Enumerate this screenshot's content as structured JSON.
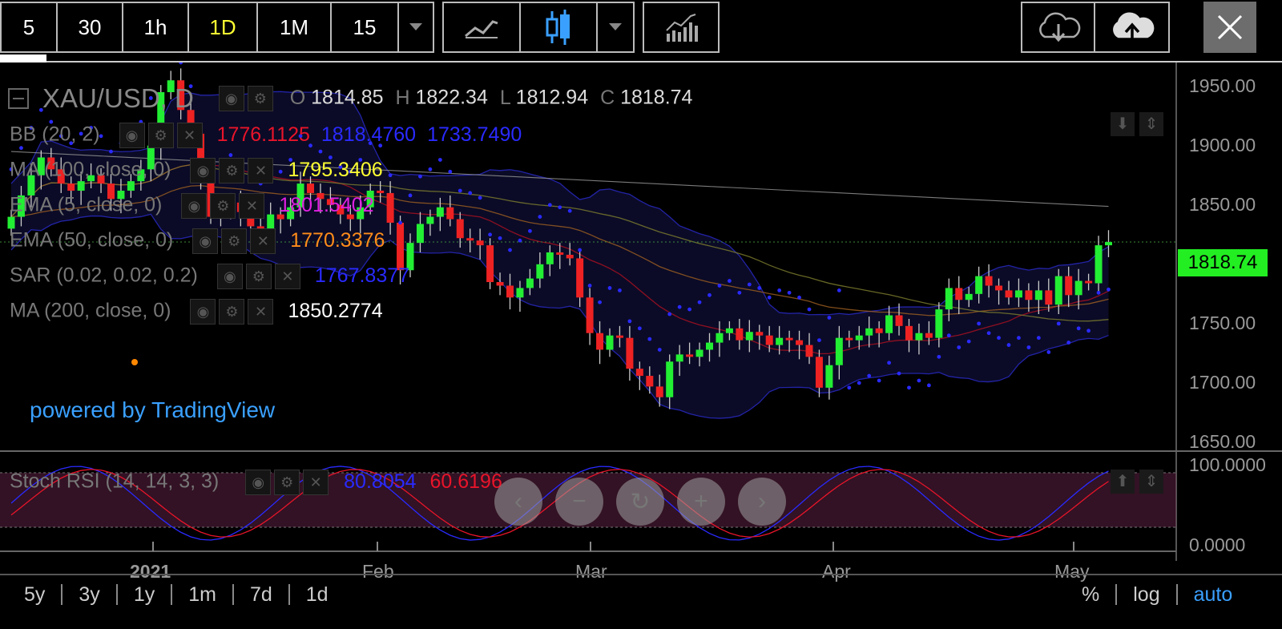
{
  "toolbar": {
    "intervals": [
      "5",
      "30",
      "1h",
      "1D",
      "1M",
      "15"
    ],
    "active_interval": "1D",
    "icons": [
      "line-chart-icon",
      "candlestick-icon",
      "chevron-down-icon",
      "indicators-icon",
      "cloud-download-icon",
      "cloud-upload-icon",
      "close-icon"
    ]
  },
  "legend": {
    "symbol": "XAU/USD, D",
    "ohlc": {
      "o_label": "O",
      "o": "1814.85",
      "h_label": "H",
      "h": "1822.34",
      "l_label": "L",
      "l": "1812.94",
      "c_label": "C",
      "c": "1818.74"
    },
    "indicators": [
      {
        "name": "BB (20, 2)",
        "values": [
          "1776.1125",
          "1818.4760",
          "1733.7490"
        ],
        "colors": [
          "#e8142a",
          "#2a2aff",
          "#2a2aff"
        ]
      },
      {
        "name": "MA (100, close, 0)",
        "values": [
          "1795.3406"
        ],
        "colors": [
          "#ffff33"
        ]
      },
      {
        "name": "EMA (5, close, 0)",
        "values": [
          "1801.5402"
        ],
        "colors": [
          "#e020e0"
        ]
      },
      {
        "name": "EMA (50, close, 0)",
        "values": [
          "1770.3376"
        ],
        "colors": [
          "#ff8c1a"
        ]
      },
      {
        "name": "SAR (0.02, 0.02, 0.2)",
        "values": [
          "1767.8377"
        ],
        "colors": [
          "#2a2aff"
        ]
      },
      {
        "name": "MA (200, close, 0)",
        "values": [
          "1850.2774"
        ],
        "colors": [
          "#ffffff"
        ]
      }
    ],
    "stoch": {
      "name": "Stoch RSI (14, 14, 3, 3)",
      "values": [
        "80.8054",
        "60.6196"
      ],
      "colors": [
        "#2a2aff",
        "#e8142a"
      ]
    }
  },
  "watermark": "powered by TradingView",
  "price_axis": {
    "ticks": [
      "1950.00",
      "1900.00",
      "1850.00",
      "1800.00",
      "1750.00",
      "1700.00",
      "1650.00"
    ],
    "current_price": "1818.74",
    "current_color": "#22ee22"
  },
  "stoch_axis": {
    "ticks": [
      "100.0000",
      "0.0000"
    ]
  },
  "time_axis": {
    "labels": [
      "2021",
      "Feb",
      "Mar",
      "Apr",
      "May"
    ]
  },
  "range_buttons": [
    "5y",
    "3y",
    "1y",
    "1m",
    "7d",
    "1d"
  ],
  "scale_buttons": {
    "percent": "%",
    "log": "log",
    "auto": "auto"
  },
  "nav_buttons": [
    "‹",
    "−",
    "↻",
    "+",
    "›"
  ],
  "chart_data": {
    "type": "candlestick",
    "title": "XAU/USD, D",
    "ylim": [
      1650,
      1970
    ],
    "closes": [
      1840,
      1858,
      1875,
      1890,
      1880,
      1868,
      1862,
      1870,
      1875,
      1868,
      1855,
      1862,
      1870,
      1880,
      1900,
      1945,
      1955,
      1930,
      1910,
      1875,
      1840,
      1848,
      1852,
      1844,
      1832,
      1828,
      1842,
      1838,
      1848,
      1868,
      1860,
      1855,
      1850,
      1842,
      1838,
      1848,
      1862,
      1860,
      1835,
      1795,
      1818,
      1834,
      1840,
      1848,
      1838,
      1822,
      1820,
      1816,
      1785,
      1782,
      1772,
      1780,
      1788,
      1800,
      1810,
      1808,
      1805,
      1772,
      1742,
      1728,
      1740,
      1738,
      1712,
      1706,
      1697,
      1688,
      1718,
      1724,
      1722,
      1728,
      1734,
      1742,
      1746,
      1736,
      1743,
      1740,
      1732,
      1738,
      1736,
      1732,
      1722,
      1696,
      1715,
      1738,
      1736,
      1740,
      1746,
      1742,
      1757,
      1748,
      1736,
      1742,
      1738,
      1762,
      1780,
      1770,
      1775,
      1790,
      1782,
      1778,
      1772,
      1778,
      1770,
      1778,
      1766,
      1790,
      1774,
      1786,
      1784,
      1816,
      1818.74
    ]
  }
}
